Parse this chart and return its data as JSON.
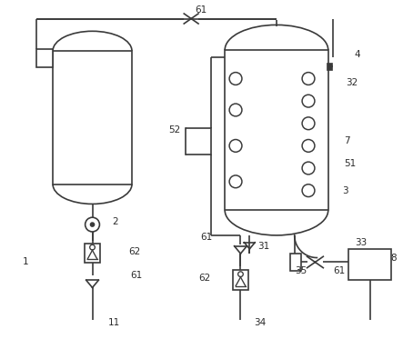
{
  "bg_color": "#ffffff",
  "line_color": "#3a3a3a",
  "line_width": 1.2,
  "fig_width": 4.43,
  "fig_height": 3.73
}
